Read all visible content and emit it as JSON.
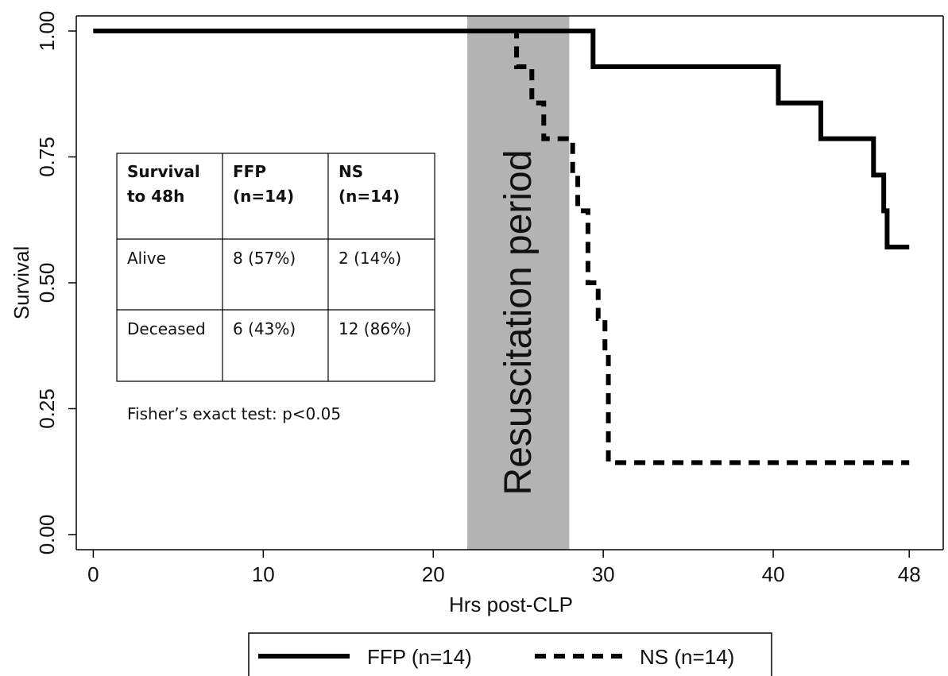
{
  "chart_data": {
    "type": "line",
    "title": "",
    "xlabel": "Hrs post-CLP",
    "ylabel": "Survival",
    "xlim": [
      -1,
      50
    ],
    "ylim": [
      -0.03,
      1.03
    ],
    "x_ticks": [
      0,
      10,
      20,
      30,
      40,
      48
    ],
    "y_ticks": [
      0.0,
      0.25,
      0.5,
      0.75,
      1.0
    ],
    "y_tick_labels": [
      "0.00",
      "0.25",
      "0.50",
      "0.75",
      "1.00"
    ],
    "grid": false,
    "shaded_region": {
      "x": [
        22,
        28
      ],
      "label": "Resuscitation period",
      "color": "#b3b3b3"
    },
    "series": [
      {
        "name": "FFP (n=14)",
        "style": "solid",
        "color": "#000000",
        "x": [
          0,
          29.4,
          40.3,
          42.8,
          45.9,
          46.5,
          46.7,
          48
        ],
        "y": [
          1.0,
          0.929,
          0.857,
          0.786,
          0.714,
          0.643,
          0.571,
          0.571
        ]
      },
      {
        "name": "NS (n=14)",
        "style": "dashed",
        "color": "#000000",
        "x": [
          0,
          24.9,
          25.8,
          26.5,
          28.2,
          28.5,
          29.1,
          29.7,
          30.1,
          30.3,
          48
        ],
        "y": [
          1.0,
          0.929,
          0.857,
          0.786,
          0.714,
          0.643,
          0.5,
          0.429,
          0.357,
          0.143,
          0.143
        ]
      }
    ],
    "legend_position": "bottom"
  },
  "inset_table": {
    "headers": [
      [
        "Survival",
        "to 48h"
      ],
      [
        "FFP",
        "(n=14)"
      ],
      [
        "NS",
        "(n=14)"
      ]
    ],
    "rows": [
      [
        "Alive",
        "8 (57%)",
        "2 (14%)"
      ],
      [
        "Deceased",
        "6 (43%)",
        "12 (86%)"
      ]
    ],
    "note": "Fisher’s exact test: p<0.05"
  }
}
